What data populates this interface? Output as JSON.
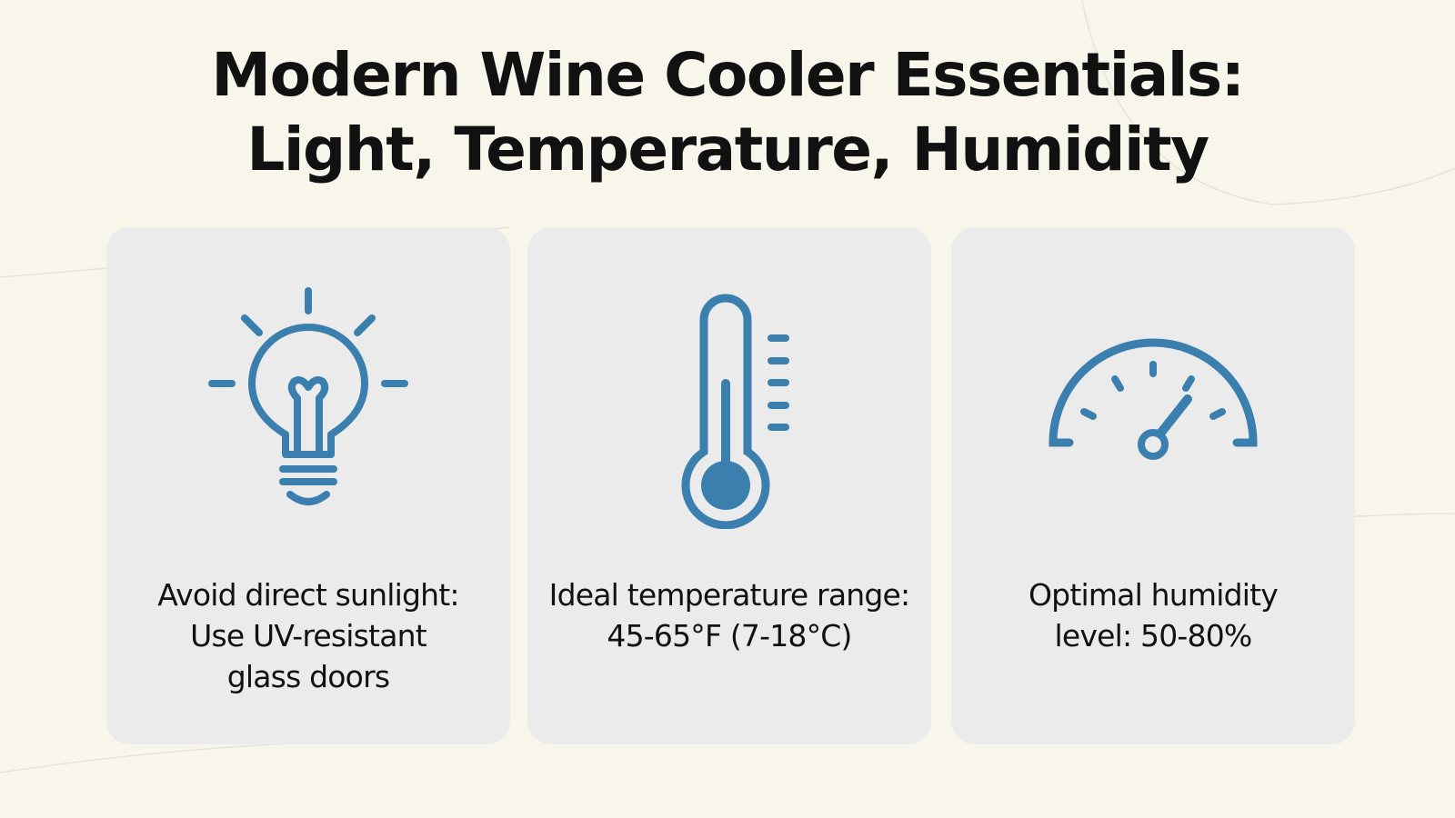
{
  "title": {
    "line1": "Modern Wine Cooler Essentials:",
    "line2": "Light, Temperature, Humidity"
  },
  "accent_color": "#3a7fad",
  "cards": [
    {
      "icon": "light-bulb-icon",
      "text": [
        "Avoid direct sunlight:",
        "Use UV-resistant",
        "glass doors"
      ]
    },
    {
      "icon": "thermometer-icon",
      "text": [
        "Ideal temperature range:",
        "45-65°F (7-18°C)"
      ]
    },
    {
      "icon": "gauge-icon",
      "text": [
        "Optimal humidity",
        "level: 50-80%"
      ]
    }
  ]
}
